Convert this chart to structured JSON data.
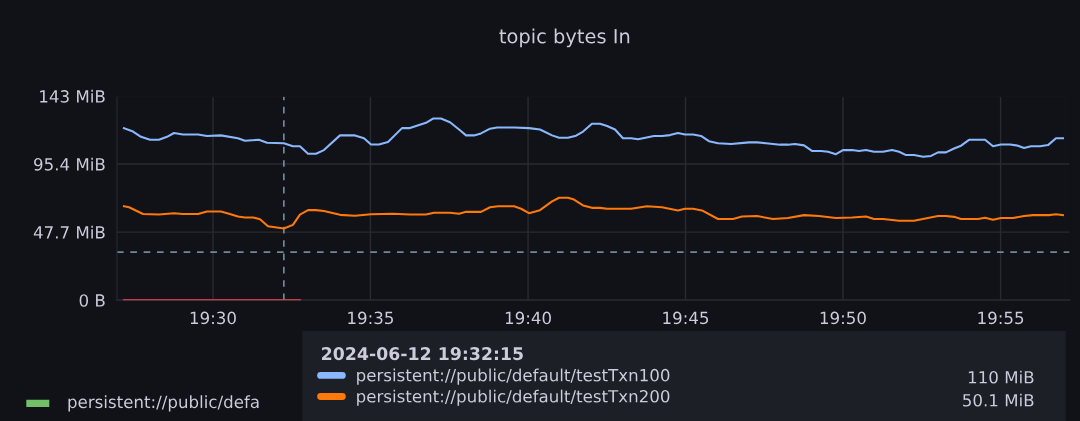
{
  "chart_data": {
    "type": "line",
    "title": "topic bytes In",
    "xlim": [
      19.4492,
      19.9534
    ],
    "xticks": [
      {
        "value": 19.5,
        "label": "19:30"
      },
      {
        "value": 19.5833,
        "label": "19:35"
      },
      {
        "value": 19.6667,
        "label": "19:40"
      },
      {
        "value": 19.75,
        "label": "19:45"
      },
      {
        "value": 19.8333,
        "label": "19:50"
      },
      {
        "value": 19.9167,
        "label": "19:55"
      }
    ],
    "ylim": [
      0,
      143
    ],
    "yticks": [
      {
        "value": 0,
        "label": "0 B"
      },
      {
        "value": 47.7,
        "label": "47.7 MiB"
      },
      {
        "value": 95.4,
        "label": "95.4 MiB"
      },
      {
        "value": 143,
        "label": "143 MiB"
      }
    ],
    "grid": true,
    "marker": "none",
    "line_style": "solid",
    "legend": "bottom",
    "legend_title": "2024-06-12 19:32:15",
    "series": [
      {
        "name": "persistent://public/default/testTxn100",
        "color": "#8ab8ff",
        "x": [
          19.4529,
          19.4577,
          19.4619,
          19.4667,
          19.4714,
          19.4757,
          19.4794,
          19.4841,
          19.4921,
          19.4968,
          19.5042,
          19.5132,
          19.5169,
          19.5243,
          19.5286,
          19.5375,
          19.5423,
          19.546,
          19.5503,
          19.5545,
          19.5587,
          19.5672,
          19.5751,
          19.5799,
          19.5836,
          19.5878,
          19.5926,
          19.6,
          19.6042,
          19.6127,
          19.6164,
          19.6206,
          19.6254,
          19.6302,
          19.6339,
          19.6381,
          19.6418,
          19.6466,
          19.6503,
          19.6593,
          19.6672,
          19.673,
          19.6794,
          19.6831,
          19.6878,
          19.6921,
          19.6958,
          19.7005,
          19.7048,
          19.7085,
          19.7127,
          19.7169,
          19.7212,
          19.7249,
          19.7333,
          19.7376,
          19.7418,
          19.746,
          19.7497,
          19.754,
          19.7582,
          19.7624,
          19.7672,
          19.7741,
          19.7836,
          19.7878,
          19.7926,
          19.8,
          19.8042,
          19.8079,
          19.8127,
          19.8169,
          19.8217,
          19.8254,
          19.8296,
          19.8333,
          19.8381,
          19.8418,
          19.8455,
          19.8497,
          19.8545,
          19.8593,
          19.863,
          19.8667,
          19.8709,
          19.8757,
          19.8799,
          19.8836,
          19.8878,
          19.8921,
          19.8958,
          19.9,
          19.9085,
          19.9127,
          19.9169,
          19.9217,
          19.9259,
          19.9291,
          19.9328,
          19.9376,
          19.9418,
          19.946,
          19.9497
        ],
        "values": [
          120.6,
          118.2,
          114.5,
          112.4,
          112.4,
          114.5,
          117.2,
          116.1,
          116.1,
          115.1,
          115.5,
          113.5,
          111.8,
          112.4,
          110.4,
          110.0,
          107.9,
          107.9,
          102.6,
          102.6,
          105.2,
          115.5,
          115.5,
          113.5,
          109.1,
          109.1,
          110.8,
          120.6,
          120.6,
          124.3,
          127.3,
          127.3,
          124.7,
          119.6,
          115.5,
          115.5,
          116.9,
          120.2,
          121.0,
          121.0,
          120.6,
          119.6,
          115.5,
          113.8,
          113.8,
          115.3,
          118.2,
          123.7,
          123.7,
          122.1,
          119.6,
          113.5,
          113.5,
          112.8,
          115.1,
          115.1,
          115.7,
          117.2,
          116.1,
          116.1,
          115.1,
          111.4,
          110.0,
          109.5,
          110.6,
          110.6,
          110.0,
          109.0,
          109.0,
          109.5,
          108.5,
          104.6,
          104.6,
          104.0,
          102.3,
          105.2,
          105.2,
          104.6,
          105.2,
          104.0,
          104.0,
          105.2,
          104.0,
          101.7,
          101.7,
          100.5,
          101.1,
          103.6,
          103.6,
          106.3,
          108.3,
          112.4,
          112.4,
          107.9,
          109.1,
          109.1,
          108.3,
          106.7,
          107.9,
          107.9,
          108.7,
          113.5,
          113.5
        ]
      },
      {
        "name": "persistent://public/default/testTxn200",
        "color": "#ff780a",
        "x": [
          19.4529,
          19.4556,
          19.463,
          19.4714,
          19.4794,
          19.4841,
          19.4921,
          19.4968,
          19.5042,
          19.5085,
          19.5132,
          19.5169,
          19.5212,
          19.5249,
          19.5291,
          19.5375,
          19.5423,
          19.546,
          19.5503,
          19.5545,
          19.5587,
          19.5672,
          19.5751,
          19.5836,
          19.5952,
          19.6042,
          19.6127,
          19.6169,
          19.6254,
          19.6302,
          19.6339,
          19.6418,
          19.6466,
          19.6508,
          19.6593,
          19.663,
          19.6672,
          19.673,
          19.6794,
          19.6831,
          19.6878,
          19.691,
          19.6958,
          19.7005,
          19.7048,
          19.7085,
          19.7212,
          19.7296,
          19.7376,
          19.746,
          19.7497,
          19.754,
          19.7587,
          19.7672,
          19.7751,
          19.7799,
          19.7878,
          19.7963,
          19.8042,
          19.8127,
          19.8206,
          19.8296,
          19.8381,
          19.8455,
          19.8497,
          19.8545,
          19.863,
          19.8709,
          19.8836,
          19.8878,
          19.8921,
          19.8958,
          19.9048,
          19.9085,
          19.9127,
          19.9169,
          19.9233,
          19.9291,
          19.9339,
          19.9423,
          19.946,
          19.9497
        ],
        "values": [
          65.8,
          65.1,
          60.4,
          60.0,
          60.9,
          60.4,
          60.4,
          62.1,
          62.1,
          60.6,
          58.6,
          58.0,
          58.0,
          56.7,
          51.8,
          50.2,
          52.8,
          60.0,
          63.1,
          63.1,
          62.5,
          59.8,
          59.2,
          60.2,
          60.6,
          60.0,
          60.0,
          61.3,
          61.3,
          60.6,
          61.9,
          61.9,
          65.1,
          65.8,
          65.8,
          64.1,
          61.0,
          63.1,
          69.3,
          71.8,
          71.8,
          70.5,
          66.4,
          64.7,
          64.7,
          64.1,
          64.1,
          65.8,
          65.1,
          62.9,
          64.1,
          64.1,
          62.9,
          56.9,
          56.9,
          58.6,
          59.0,
          56.9,
          57.6,
          59.6,
          59.0,
          57.6,
          58.0,
          58.6,
          56.9,
          56.9,
          55.7,
          55.7,
          59.0,
          59.0,
          58.4,
          56.9,
          56.9,
          57.8,
          56.4,
          57.6,
          57.6,
          59.0,
          59.6,
          59.6,
          60.2,
          59.6
        ]
      },
      {
        "color": "#f2495c",
        "x": [
          19.4529,
          19.546
        ],
        "values": [
          0,
          0
        ]
      }
    ],
    "ref_lines": [
      {
        "axis": "y",
        "value": 33.7,
        "color": "#6e8a99",
        "line_style": "dashed"
      },
      {
        "axis": "x",
        "value": 19.5375,
        "color": "#6e8a99",
        "line_style": "dashed"
      }
    ],
    "annotations": [
      "110 MiB",
      "50.1 MiB",
      "persistent://public/defa"
    ]
  }
}
